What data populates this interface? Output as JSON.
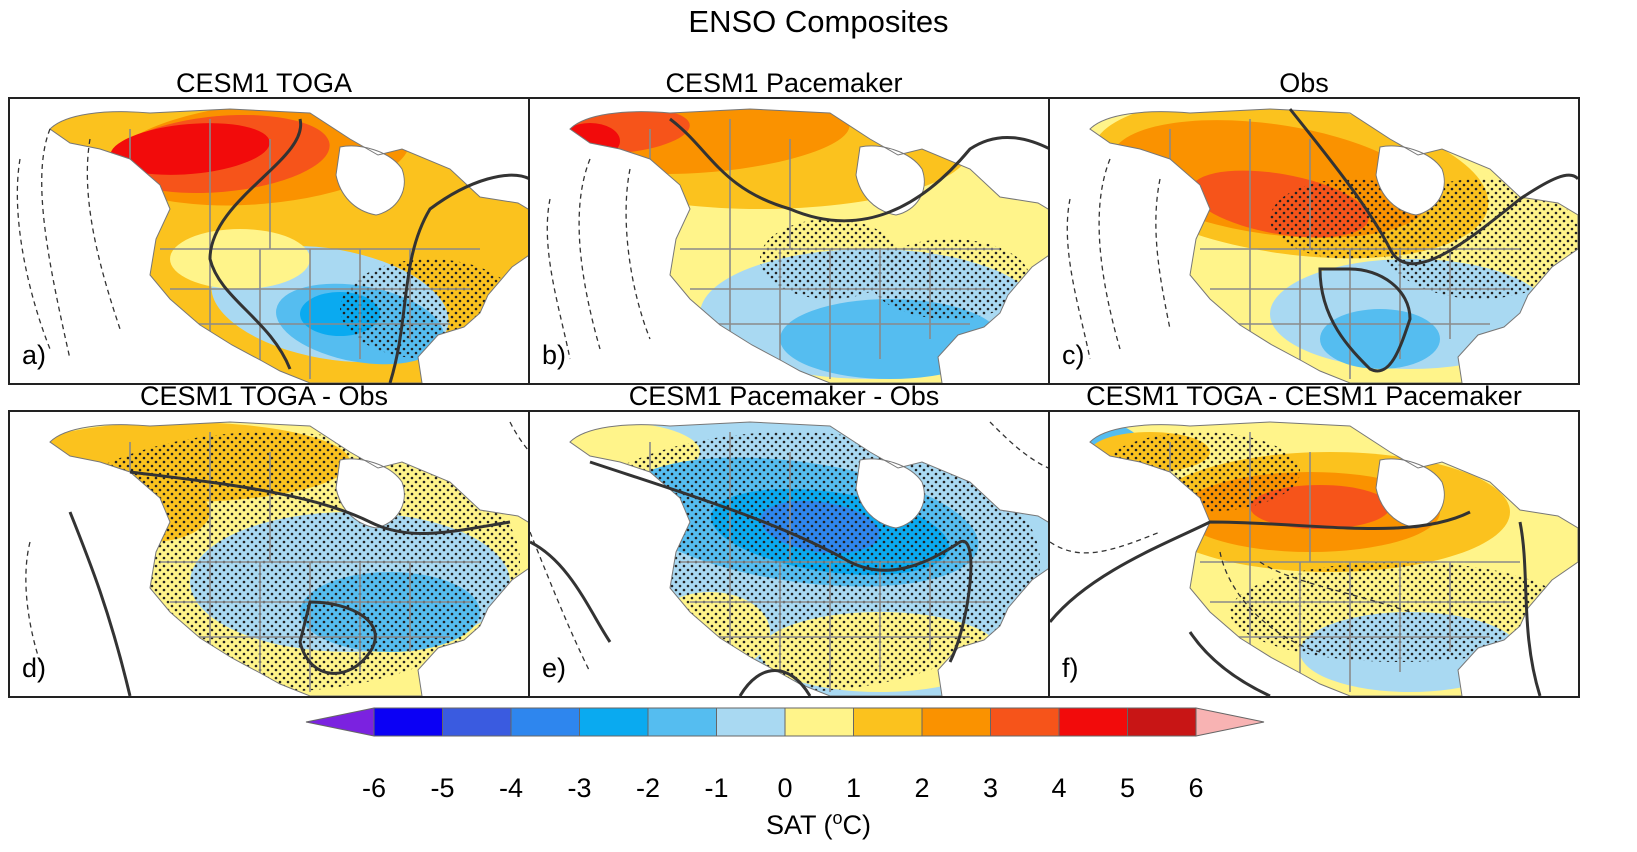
{
  "figure": {
    "title": "ENSO Composites",
    "panels": [
      {
        "id": "a",
        "title": "CESM1 TOGA",
        "label": "a)",
        "pattern": "toga"
      },
      {
        "id": "b",
        "title": "CESM1 Pacemaker",
        "label": "b)",
        "pattern": "pacemaker"
      },
      {
        "id": "c",
        "title": "Obs",
        "label": "c)",
        "pattern": "obs"
      },
      {
        "id": "d",
        "title": "CESM1 TOGA - Obs",
        "label": "d)",
        "pattern": "diff_toga_obs"
      },
      {
        "id": "e",
        "title": "CESM1 Pacemaker - Obs",
        "label": "e)",
        "pattern": "diff_pm_obs"
      },
      {
        "id": "f",
        "title": "CESM1 TOGA - CESM1 Pacemaker",
        "label": "f)",
        "pattern": "diff_toga_pm"
      }
    ]
  },
  "colorbar": {
    "label_prefix": "SAT (",
    "label_sup": "o",
    "label_suffix": "C)",
    "ticks": [
      "-6",
      "-5",
      "-4",
      "-3",
      "-2",
      "-1",
      "0",
      "1",
      "2",
      "3",
      "4",
      "5",
      "6"
    ],
    "colors": [
      "#7b22e0",
      "#0b00f5",
      "#3a5be0",
      "#2e86ee",
      "#0aaaf0",
      "#55bdf0",
      "#a9d9f2",
      "#fff48a",
      "#fbc21e",
      "#fa9200",
      "#f6541a",
      "#f20b0b",
      "#c81515",
      "#f8b3b3"
    ]
  }
}
